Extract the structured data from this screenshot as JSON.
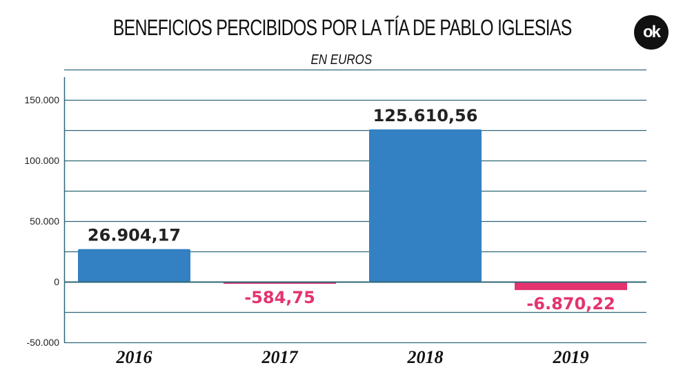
{
  "chart_data": {
    "type": "bar",
    "title": "BENEFICIOS PERCIBIDOS POR LA TÍA DE PABLO IGLESIAS",
    "subtitle": "EN EUROS",
    "xlabel": "",
    "ylabel": "",
    "categories": [
      "2016",
      "2017",
      "2018",
      "2019"
    ],
    "values": [
      26904.17,
      -584.75,
      125610.56,
      -6870.22
    ],
    "value_labels": [
      "26.904,17",
      "-584,75",
      "125.610,56",
      "-6.870,22"
    ],
    "ylim": [
      -50000,
      175000
    ],
    "yticks": [
      150000,
      100000,
      50000,
      0,
      -50000
    ],
    "ytick_labels": [
      "150.000",
      "100.000",
      "50.000",
      "0",
      "-50.000"
    ],
    "gridline_step": 25000,
    "grid": true,
    "legend": "none"
  },
  "colors": {
    "positive_bar": "#3380c2",
    "negative_bar": "#e4336f",
    "gridline": "#2c6675",
    "positive_label": "#222222",
    "negative_label": "#e4336f"
  },
  "brand": {
    "logo_text": "ok"
  }
}
